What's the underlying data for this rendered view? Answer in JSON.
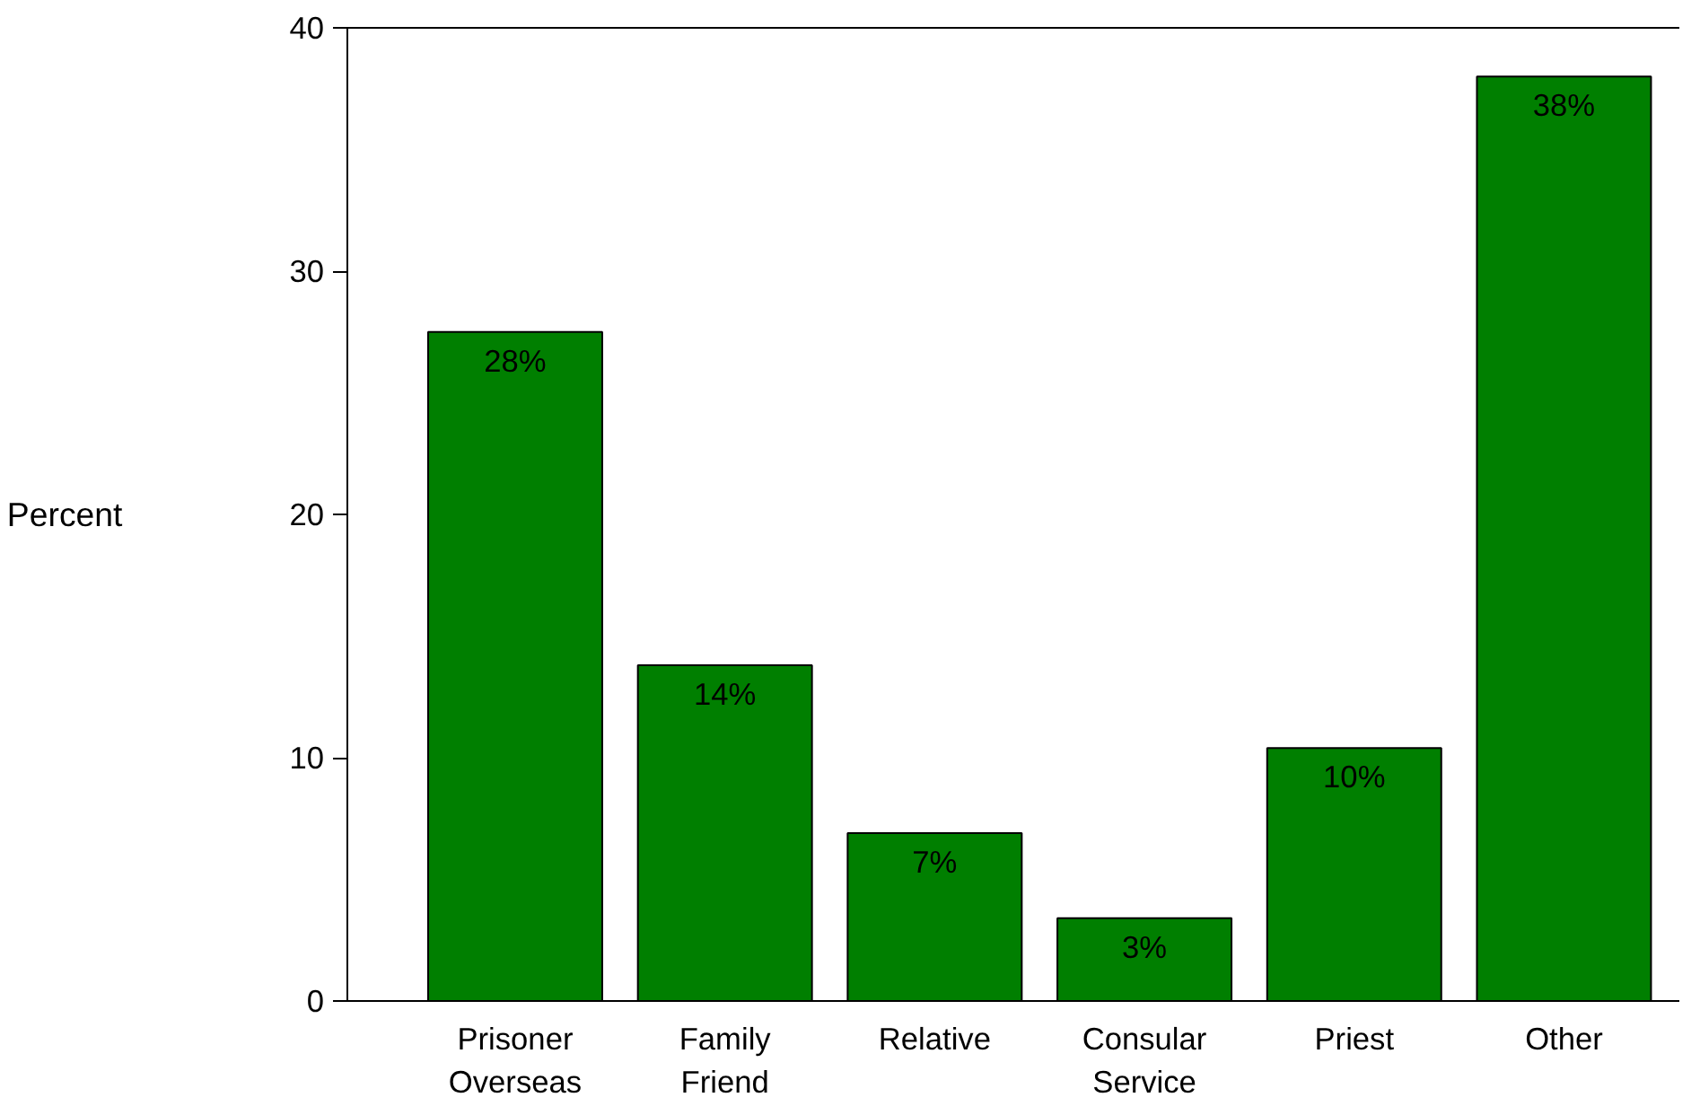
{
  "chart_data": {
    "type": "bar",
    "ylabel": "Percent",
    "categories": [
      "Prisoner Overseas",
      "Family Friend",
      "Relative",
      "Consular Service",
      "Priest",
      "Other"
    ],
    "values": [
      27.5,
      13.8,
      6.9,
      3.4,
      10.4,
      38
    ],
    "value_labels": [
      "28%",
      "14%",
      "7%",
      "3%",
      "10%",
      "38%"
    ],
    "color": "#007f00",
    "ylim": [
      0,
      40
    ],
    "yticks": [
      0,
      10,
      20,
      30,
      40
    ],
    "grid": false
  }
}
